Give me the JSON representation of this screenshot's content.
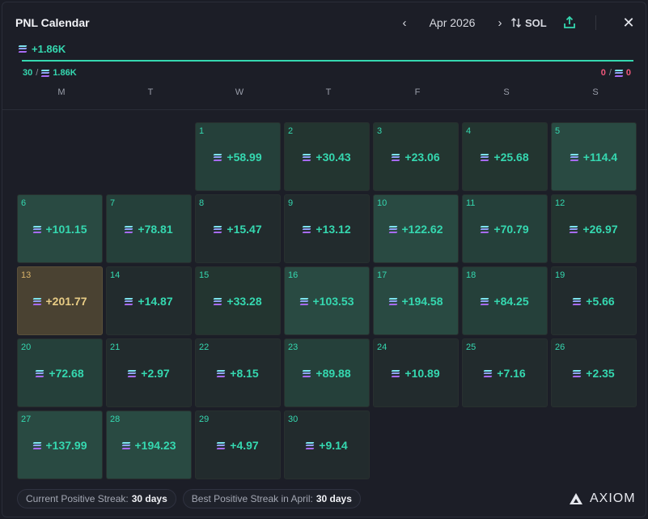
{
  "header": {
    "title": "PNL Calendar",
    "month": "Apr 2026",
    "prev_icon": "chevron-left-icon",
    "next_icon": "chevron-right-icon",
    "currency_label": "SOL",
    "close_glyph": "✕"
  },
  "summary": {
    "total": "+1.86K",
    "win_days": "30",
    "win_total": "1.86K",
    "loss_days": "0",
    "loss_total": "0",
    "progress_fraction": 1.0
  },
  "weekdays": [
    "M",
    "T",
    "W",
    "T",
    "F",
    "S",
    "S"
  ],
  "days": [
    {
      "day": "1",
      "value": "+58.99"
    },
    {
      "day": "2",
      "value": "+30.43"
    },
    {
      "day": "3",
      "value": "+23.06"
    },
    {
      "day": "4",
      "value": "+25.68"
    },
    {
      "day": "5",
      "value": "+114.4"
    },
    {
      "day": "6",
      "value": "+101.15"
    },
    {
      "day": "7",
      "value": "+78.81"
    },
    {
      "day": "8",
      "value": "+15.47"
    },
    {
      "day": "9",
      "value": "+13.12"
    },
    {
      "day": "10",
      "value": "+122.62"
    },
    {
      "day": "11",
      "value": "+70.79"
    },
    {
      "day": "12",
      "value": "+26.97"
    },
    {
      "day": "13",
      "value": "+201.77"
    },
    {
      "day": "14",
      "value": "+14.87"
    },
    {
      "day": "15",
      "value": "+33.28"
    },
    {
      "day": "16",
      "value": "+103.53"
    },
    {
      "day": "17",
      "value": "+194.58"
    },
    {
      "day": "18",
      "value": "+84.25"
    },
    {
      "day": "19",
      "value": "+5.66"
    },
    {
      "day": "20",
      "value": "+72.68"
    },
    {
      "day": "21",
      "value": "+2.97"
    },
    {
      "day": "22",
      "value": "+8.15"
    },
    {
      "day": "23",
      "value": "+89.88"
    },
    {
      "day": "24",
      "value": "+10.89"
    },
    {
      "day": "25",
      "value": "+7.16"
    },
    {
      "day": "26",
      "value": "+2.35"
    },
    {
      "day": "27",
      "value": "+137.99"
    },
    {
      "day": "28",
      "value": "+194.23"
    },
    {
      "day": "29",
      "value": "+4.97"
    },
    {
      "day": "30",
      "value": "+9.14"
    }
  ],
  "footer": {
    "current_streak_label": "Current Positive Streak:",
    "current_streak_value": "30 days",
    "best_streak_label": "Best Positive Streak in April:",
    "best_streak_value": "30 days",
    "brand": "AXIOM"
  },
  "colors": {
    "positive": "#35d8b0",
    "negative": "#f0577b",
    "best_day": "#e8cc85"
  }
}
